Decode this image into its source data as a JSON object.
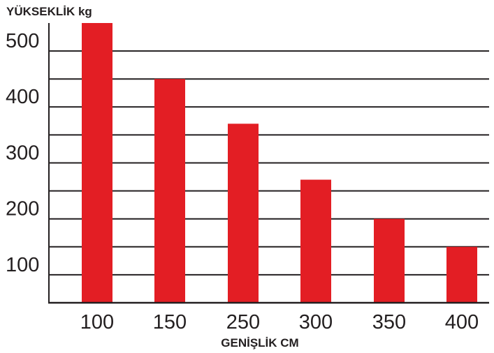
{
  "chart_data": {
    "type": "bar",
    "ylabel": "YÜKSEKLİK kg",
    "xlabel": "GENİŞLİK CM",
    "categories": [
      "100",
      "150",
      "250",
      "300",
      "350",
      "400"
    ],
    "values": [
      500,
      400,
      320,
      220,
      150,
      100
    ],
    "ylim": [
      0,
      500
    ],
    "y_ticks": [
      {
        "label": "500",
        "value": 500
      },
      {
        "label": "400",
        "value": 400
      },
      {
        "label": "300",
        "value": 300
      },
      {
        "label": "200",
        "value": 200
      },
      {
        "label": "100",
        "value": 100
      }
    ],
    "grid_values": [
      450,
      400,
      350,
      300,
      250,
      200,
      150,
      100,
      50
    ],
    "grid": true,
    "legend": "none",
    "colors": {
      "bar": "#e31e24",
      "grid": "#231f20",
      "text": "#231f20"
    }
  }
}
